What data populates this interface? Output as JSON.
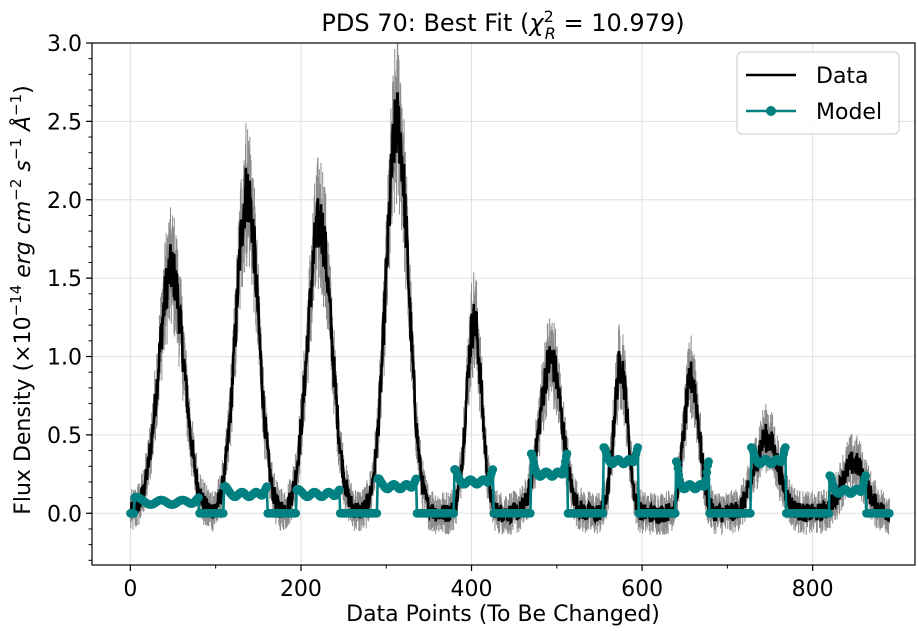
{
  "chart_data": {
    "type": "line",
    "title": "PDS 70: Best Fit (χ²_R = 10.979)",
    "title_parts": {
      "prefix": "PDS 70: Best Fit (",
      "chi": "χ",
      "sup": "2",
      "sub": "R",
      "suffix": " = 10.979)"
    },
    "xlabel": "Data Points (To Be Changed)",
    "ylabel_parts": {
      "prefix": "Flux Density (×10",
      "exp": "−14",
      "unit1": " erg cm",
      "unit1_exp": "−2",
      "unit2": " s",
      "unit2_exp": "−1",
      "unit3": " Å",
      "unit3_exp": "−1",
      "suffix": ")"
    },
    "xlim": [
      -45,
      920
    ],
    "ylim": [
      -0.33,
      3.0
    ],
    "xticks": [
      0,
      200,
      400,
      600,
      800
    ],
    "xtick_labels": [
      "0",
      "200",
      "400",
      "600",
      "800"
    ],
    "yticks": [
      0.0,
      0.5,
      1.0,
      1.5,
      2.0,
      2.5,
      3.0
    ],
    "ytick_labels": [
      "0.0",
      "0.5",
      "1.0",
      "1.5",
      "2.0",
      "2.5",
      "3.0"
    ],
    "grid": true,
    "legend": {
      "placement": "top-right",
      "entries": [
        "Data",
        "Model"
      ]
    },
    "series": [
      {
        "name": "Data",
        "color": "#000000",
        "uncertainty_color": "#808080",
        "peaks": [
          {
            "center": 48,
            "height": 1.55,
            "width": 15
          },
          {
            "center": 137,
            "height": 2.05,
            "width": 13
          },
          {
            "center": 222,
            "height": 1.85,
            "width": 14
          },
          {
            "center": 313,
            "height": 2.48,
            "width": 13
          },
          {
            "center": 403,
            "height": 1.22,
            "width": 9
          },
          {
            "center": 493,
            "height": 0.98,
            "width": 13
          },
          {
            "center": 575,
            "height": 0.95,
            "width": 8
          },
          {
            "center": 658,
            "height": 0.86,
            "width": 9
          },
          {
            "center": 746,
            "height": 0.48,
            "width": 14
          },
          {
            "center": 848,
            "height": 0.32,
            "width": 14
          }
        ],
        "x_range": [
          0,
          890
        ],
        "noise": 0.06
      },
      {
        "name": "Model",
        "color": "#008080",
        "marker": "circle",
        "segments": [
          {
            "x0": 5,
            "x1": 80,
            "level": 0.07,
            "edge": 0.1
          },
          {
            "x0": 110,
            "x1": 160,
            "level": 0.12,
            "edge": 0.17
          },
          {
            "x0": 195,
            "x1": 245,
            "level": 0.12,
            "edge": 0.15
          },
          {
            "x0": 290,
            "x1": 335,
            "level": 0.17,
            "edge": 0.22
          },
          {
            "x0": 380,
            "x1": 425,
            "level": 0.2,
            "edge": 0.28
          },
          {
            "x0": 470,
            "x1": 512,
            "level": 0.25,
            "edge": 0.38
          },
          {
            "x0": 555,
            "x1": 595,
            "level": 0.33,
            "edge": 0.42
          },
          {
            "x0": 640,
            "x1": 678,
            "level": 0.17,
            "edge": 0.33
          },
          {
            "x0": 728,
            "x1": 768,
            "level": 0.33,
            "edge": 0.42
          },
          {
            "x0": 820,
            "x1": 862,
            "level": 0.14,
            "edge": 0.24
          }
        ],
        "baseline": 0.0,
        "x_range": [
          0,
          890
        ]
      }
    ]
  }
}
